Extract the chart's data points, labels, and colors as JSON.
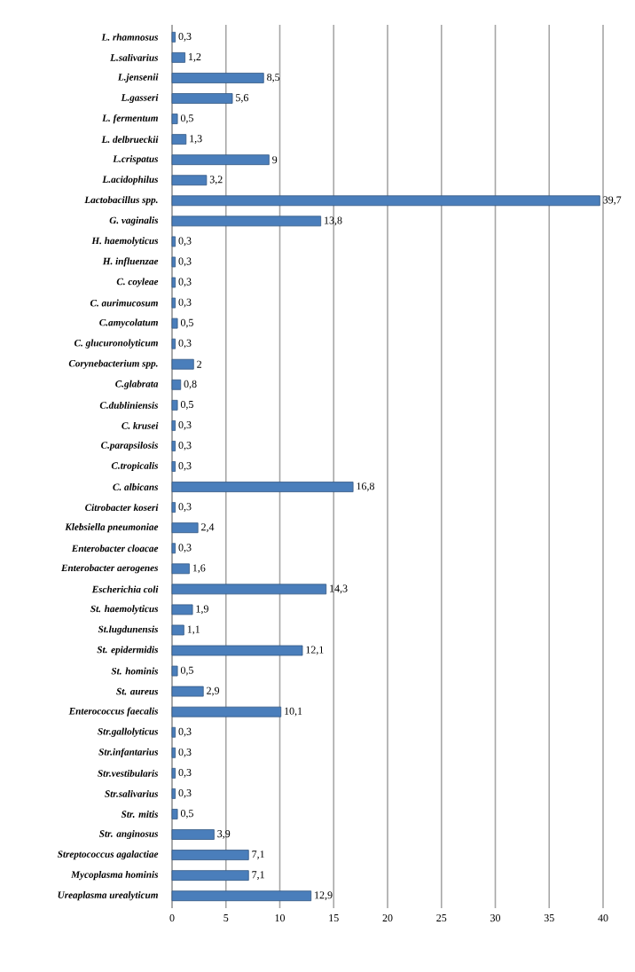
{
  "chart_data": {
    "type": "bar",
    "orientation": "horizontal",
    "color": "#4a7ebb",
    "grid": "x",
    "xlim": [
      0,
      40
    ],
    "xticks": [
      0,
      5,
      10,
      15,
      20,
      25,
      30,
      35,
      40
    ],
    "categories": [
      "L. rhamnosus",
      "L.salivarius",
      "L.jensenii",
      "L.gasseri",
      "L. fermentum",
      "L. delbrueckii",
      "L.crispatus",
      "L.acidophilus",
      "Lactobacillus spp.",
      "G. vaginalis",
      "H. haemolyticus",
      "H. influenzae",
      "C. coyleae",
      "C. aurimucosum",
      "C.amycolatum",
      "C. glucuronolyticum",
      "Corynebacterium spp.",
      "C.glabrata",
      "C.dubliniensis",
      "C. krusei",
      "C.parapsilosis",
      "C.tropicalis",
      "C. albicans",
      "Citrobacter koseri",
      "Klebsiella pneumoniae",
      "Enterobacter cloacae",
      "Enterobacter aerogenes",
      "Escherichia coli",
      "St. haemolyticus",
      "St.lugdunensis",
      "St. epidermidis",
      "St. hominis",
      "St. aureus",
      "Enterococcus faecalis",
      "Str.gallolyticus",
      "Str.infantarius",
      "Str.vestibularis",
      "Str.salivarius",
      "Str. mitis",
      "Str. anginosus",
      "Streptococcus agalactiae",
      "Mycoplasma hominis",
      "Ureaplasma urealyticum"
    ],
    "values": [
      0.3,
      1.2,
      8.5,
      5.6,
      0.5,
      1.3,
      9,
      3.2,
      39.7,
      13.8,
      0.3,
      0.3,
      0.3,
      0.3,
      0.5,
      0.3,
      2,
      0.8,
      0.5,
      0.3,
      0.3,
      0.3,
      16.8,
      0.3,
      2.4,
      0.3,
      1.6,
      14.3,
      1.9,
      1.1,
      12.1,
      0.5,
      2.9,
      10.1,
      0.3,
      0.3,
      0.3,
      0.3,
      0.5,
      3.9,
      7.1,
      7.1,
      12.9
    ],
    "value_labels": [
      "0,3",
      "1,2",
      "8,5",
      "5,6",
      "0,5",
      "1,3",
      "9",
      "3,2",
      "39,7",
      "13,8",
      "0,3",
      "0,3",
      "0,3",
      "0,3",
      "0,5",
      "0,3",
      "2",
      "0,8",
      "0,5",
      "0,3",
      "0,3",
      "0,3",
      "16,8",
      "0,3",
      "2,4",
      "0,3",
      "1,6",
      "14,3",
      "1,9",
      "1,1",
      "12,1",
      "0,5",
      "2,9",
      "10,1",
      "0,3",
      "0,3",
      "0,3",
      "0,3",
      "0,5",
      "3,9",
      "7,1",
      "7,1",
      "12,9"
    ]
  }
}
